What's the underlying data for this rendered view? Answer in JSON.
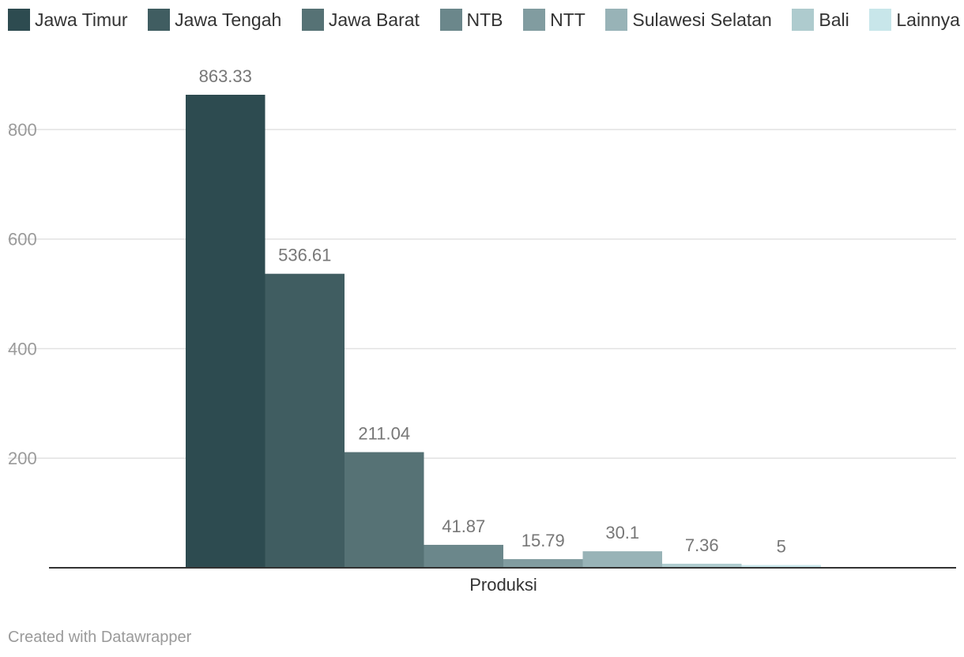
{
  "chart_data": {
    "type": "bar",
    "categories": [
      "Produksi"
    ],
    "series": [
      {
        "name": "Jawa Timur",
        "values": [
          863.33
        ],
        "color": "#2d4b50"
      },
      {
        "name": "Jawa Tengah",
        "values": [
          536.61
        ],
        "color": "#405d61"
      },
      {
        "name": "Jawa Barat",
        "values": [
          211.04
        ],
        "color": "#567275"
      },
      {
        "name": "NTB",
        "values": [
          41.87
        ],
        "color": "#6b878b"
      },
      {
        "name": "NTT",
        "values": [
          15.79
        ],
        "color": "#819ca0"
      },
      {
        "name": "Sulawesi Selatan",
        "values": [
          30.1
        ],
        "color": "#98b3b7"
      },
      {
        "name": "Bali",
        "values": [
          7.36
        ],
        "color": "#aecbce"
      },
      {
        "name": "Lainnya",
        "values": [
          5
        ],
        "color": "#c8e6ea"
      }
    ],
    "value_labels": [
      "863.33",
      "536.61",
      "211.04",
      "41.87",
      "15.79",
      "30.1",
      "7.36",
      "5"
    ],
    "yticks": [
      200,
      400,
      600,
      800
    ],
    "ylim": [
      0,
      863.33
    ],
    "grid": true,
    "legend_position": "top"
  },
  "footer": {
    "credit": "Created with Datawrapper"
  }
}
